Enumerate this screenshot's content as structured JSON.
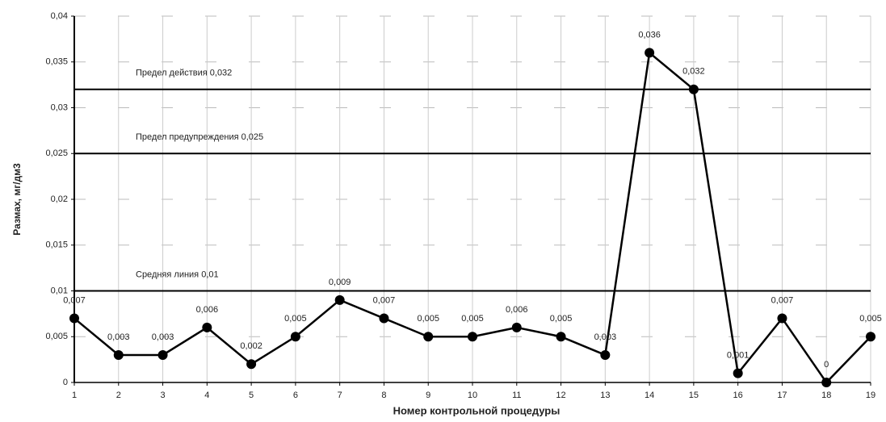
{
  "chart_data": {
    "type": "line",
    "x_label": "Номер контрольной процедуры",
    "y_label": "Размах, мг/дм3",
    "x": [
      1,
      2,
      3,
      4,
      5,
      6,
      7,
      8,
      9,
      10,
      11,
      12,
      13,
      14,
      15,
      16,
      17,
      18,
      19
    ],
    "series": [
      {
        "name": "Размах",
        "color": "#000000",
        "values": [
          0.007,
          0.003,
          0.003,
          0.006,
          0.002,
          0.005,
          0.009,
          0.007,
          0.005,
          0.005,
          0.006,
          0.005,
          0.003,
          0.036,
          0.032,
          0.001,
          0.007,
          0,
          0.005
        ],
        "value_labels": [
          "0,007",
          "0,003",
          "0,003",
          "0,006",
          "0,002",
          "0,005",
          "0,009",
          "0,007",
          "0,005",
          "0,005",
          "0,006",
          "0,005",
          "0,003",
          "0,036",
          "0,032",
          "0,001",
          "0,007",
          "0",
          "0,005"
        ]
      }
    ],
    "reference_lines": [
      {
        "value": 0.032,
        "label": "Предел действия 0,032"
      },
      {
        "value": 0.025,
        "label": "Предел предупреждения 0,025"
      },
      {
        "value": 0.01,
        "label": "Средняя линия 0,01"
      }
    ],
    "xlim": [
      1,
      19
    ],
    "xticks": [
      1,
      2,
      3,
      4,
      5,
      6,
      7,
      8,
      9,
      10,
      11,
      12,
      13,
      14,
      15,
      16,
      17,
      18,
      19
    ],
    "ylim": [
      0,
      0.04
    ],
    "yticks": [
      0,
      {
        "value": 0.005,
        "label": "0,005"
      },
      {
        "value": 0.01,
        "label": "0,01"
      },
      {
        "value": 0.015,
        "label": "0,015"
      },
      {
        "value": 0.02,
        "label": "0,02"
      },
      {
        "value": 0.025,
        "label": "0,025"
      },
      {
        "value": 0.03,
        "label": "0,03"
      },
      {
        "value": 0.035,
        "label": "0,035"
      },
      {
        "value": 0.04,
        "label": "0,04"
      }
    ],
    "grid": true
  }
}
